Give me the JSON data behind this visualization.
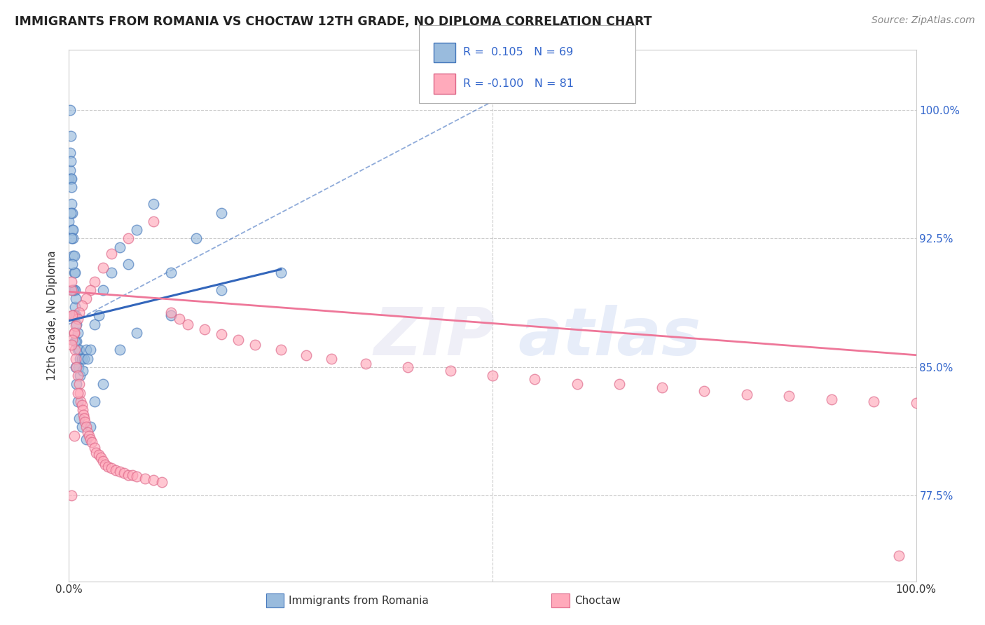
{
  "title": "IMMIGRANTS FROM ROMANIA VS CHOCTAW 12TH GRADE, NO DIPLOMA CORRELATION CHART",
  "source_text": "Source: ZipAtlas.com",
  "ylabel": "12th Grade, No Diploma",
  "xmin": 0.0,
  "xmax": 1.0,
  "ymin": 0.725,
  "ymax": 1.035,
  "yticks": [
    0.775,
    0.85,
    0.925,
    1.0
  ],
  "ytick_labels": [
    "77.5%",
    "85.0%",
    "92.5%",
    "100.0%"
  ],
  "xtick_labels": [
    "0.0%",
    "100.0%"
  ],
  "color_blue": "#99BBDD",
  "color_blue_edge": "#4477BB",
  "color_blue_line": "#3366BB",
  "color_pink": "#FFAABB",
  "color_pink_edge": "#DD6688",
  "color_pink_line": "#EE7799",
  "blue_r": 0.105,
  "blue_n": 69,
  "pink_r": -0.1,
  "pink_n": 81,
  "blue_line_x0": 0.0,
  "blue_line_y0": 0.877,
  "blue_line_x1": 0.25,
  "blue_line_y1": 0.907,
  "pink_line_x0": 0.0,
  "pink_line_y0": 0.894,
  "pink_line_x1": 1.0,
  "pink_line_y1": 0.857,
  "dash_line_x0": 0.0,
  "dash_line_y0": 0.875,
  "dash_line_x1": 0.5,
  "dash_line_y1": 1.005,
  "blue_pts_x": [
    0.0,
    0.0,
    0.001,
    0.001,
    0.001,
    0.002,
    0.002,
    0.002,
    0.003,
    0.003,
    0.003,
    0.004,
    0.004,
    0.005,
    0.005,
    0.005,
    0.006,
    0.006,
    0.006,
    0.007,
    0.007,
    0.007,
    0.008,
    0.008,
    0.009,
    0.009,
    0.01,
    0.01,
    0.011,
    0.012,
    0.013,
    0.013,
    0.015,
    0.016,
    0.018,
    0.02,
    0.022,
    0.025,
    0.03,
    0.035,
    0.04,
    0.05,
    0.06,
    0.07,
    0.08,
    0.1,
    0.12,
    0.15,
    0.18,
    0.002,
    0.003,
    0.004,
    0.005,
    0.006,
    0.007,
    0.008,
    0.009,
    0.01,
    0.012,
    0.015,
    0.02,
    0.025,
    0.03,
    0.04,
    0.06,
    0.08,
    0.12,
    0.18,
    0.25
  ],
  "blue_pts_y": [
    0.935,
    0.96,
    0.975,
    0.965,
    1.0,
    0.985,
    0.97,
    0.96,
    0.96,
    0.955,
    0.945,
    0.94,
    0.93,
    0.93,
    0.925,
    0.915,
    0.915,
    0.905,
    0.895,
    0.905,
    0.895,
    0.885,
    0.89,
    0.88,
    0.875,
    0.865,
    0.87,
    0.86,
    0.85,
    0.86,
    0.855,
    0.845,
    0.855,
    0.848,
    0.855,
    0.86,
    0.855,
    0.86,
    0.875,
    0.88,
    0.895,
    0.905,
    0.92,
    0.91,
    0.93,
    0.945,
    0.905,
    0.925,
    0.94,
    0.94,
    0.925,
    0.91,
    0.895,
    0.88,
    0.865,
    0.85,
    0.84,
    0.83,
    0.82,
    0.815,
    0.808,
    0.815,
    0.83,
    0.84,
    0.86,
    0.87,
    0.88,
    0.895,
    0.905
  ],
  "pink_pts_x": [
    0.003,
    0.005,
    0.006,
    0.007,
    0.008,
    0.009,
    0.01,
    0.012,
    0.013,
    0.014,
    0.015,
    0.016,
    0.017,
    0.018,
    0.019,
    0.02,
    0.022,
    0.024,
    0.025,
    0.027,
    0.03,
    0.032,
    0.035,
    0.038,
    0.04,
    0.043,
    0.046,
    0.05,
    0.055,
    0.06,
    0.065,
    0.07,
    0.075,
    0.08,
    0.09,
    0.1,
    0.11,
    0.12,
    0.13,
    0.14,
    0.16,
    0.18,
    0.2,
    0.22,
    0.25,
    0.28,
    0.31,
    0.35,
    0.4,
    0.45,
    0.5,
    0.55,
    0.6,
    0.65,
    0.7,
    0.75,
    0.8,
    0.85,
    0.9,
    0.95,
    1.0,
    0.1,
    0.07,
    0.05,
    0.04,
    0.03,
    0.025,
    0.02,
    0.015,
    0.012,
    0.01,
    0.008,
    0.006,
    0.004,
    0.003,
    0.003,
    0.004,
    0.006,
    0.01,
    0.003,
    0.98
  ],
  "pink_pts_y": [
    0.895,
    0.88,
    0.87,
    0.86,
    0.855,
    0.85,
    0.845,
    0.84,
    0.835,
    0.83,
    0.828,
    0.825,
    0.822,
    0.82,
    0.818,
    0.815,
    0.812,
    0.81,
    0.808,
    0.806,
    0.803,
    0.8,
    0.799,
    0.797,
    0.795,
    0.793,
    0.792,
    0.791,
    0.79,
    0.789,
    0.788,
    0.787,
    0.787,
    0.786,
    0.785,
    0.784,
    0.783,
    0.882,
    0.878,
    0.875,
    0.872,
    0.869,
    0.866,
    0.863,
    0.86,
    0.857,
    0.855,
    0.852,
    0.85,
    0.848,
    0.845,
    0.843,
    0.84,
    0.84,
    0.838,
    0.836,
    0.834,
    0.833,
    0.831,
    0.83,
    0.829,
    0.935,
    0.925,
    0.916,
    0.908,
    0.9,
    0.895,
    0.89,
    0.886,
    0.882,
    0.878,
    0.874,
    0.87,
    0.866,
    0.863,
    0.9,
    0.88,
    0.81,
    0.835,
    0.775,
    0.74
  ]
}
